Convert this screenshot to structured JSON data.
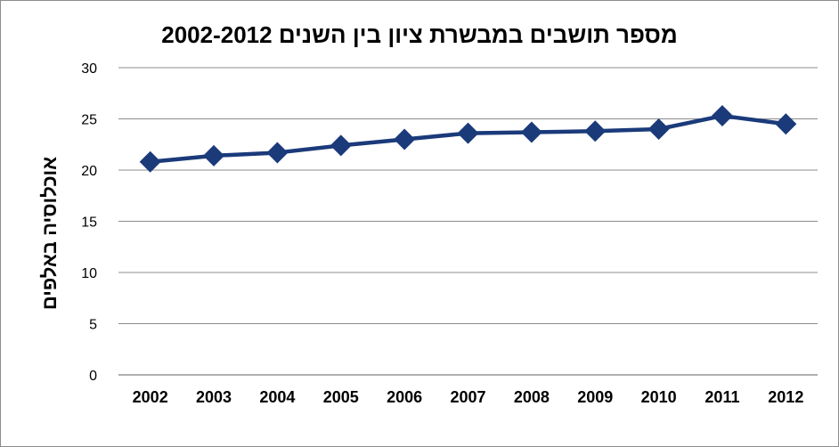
{
  "chart_data": {
    "type": "line",
    "title": "מספר תושבים במבשרת ציון בין השנים  2002-2012",
    "xlabel": "",
    "ylabel": "אוכלוסיה באלפים",
    "categories": [
      "2002",
      "2003",
      "2004",
      "2005",
      "2006",
      "2007",
      "2008",
      "2009",
      "2010",
      "2011",
      "2012"
    ],
    "series": [
      {
        "values": [
          20.8,
          21.4,
          21.7,
          22.4,
          23.0,
          23.6,
          23.7,
          23.8,
          24.0,
          25.3,
          24.5
        ]
      }
    ],
    "ylim": [
      0,
      30
    ],
    "yticks": [
      0,
      5,
      10,
      15,
      20,
      25,
      30
    ],
    "grid": true,
    "legend": "none",
    "colors": {
      "line": "#1a3a7a",
      "marker": "#1a3a7a",
      "grid": "#8c8c8c",
      "axis": "#7f7f7f"
    }
  }
}
